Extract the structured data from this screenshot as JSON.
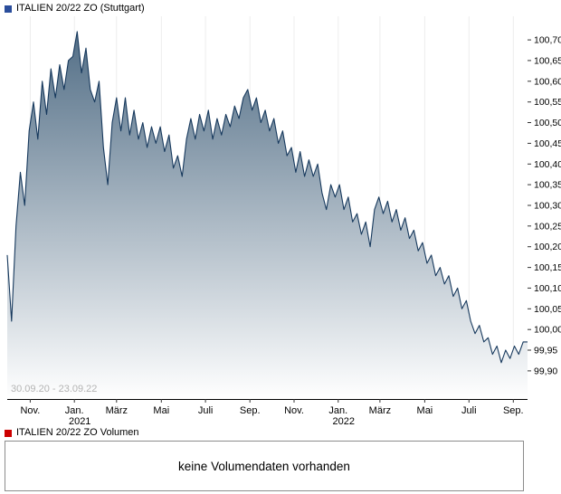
{
  "price_chart": {
    "legend_label": "ITALIEN 20/22 ZO (Stuttgart)",
    "legend_color": "#2a4d9b"
  },
  "volume_section": {
    "legend_label": "ITALIEN 20/22 ZO Volumen",
    "legend_color": "#cc0000",
    "empty_message": "keine Volumendaten vorhanden"
  },
  "chart_data": {
    "type": "area",
    "title": "ITALIEN 20/22 ZO (Stuttgart)",
    "date_range": "30.09.20 - 23.09.22",
    "xlabel": "",
    "ylabel": "",
    "grid": "faint-vertical",
    "legend_position": "top-left",
    "line_color": "#17395d",
    "fill_top_color": "#4b6881",
    "fill_bottom_color": "#ffffff",
    "axis_color": "#000000",
    "watermark_color": "#b4b4b4",
    "span_months": 23.8,
    "x_step_month": 0.2,
    "ylim": [
      99.832,
      100.757
    ],
    "y_ticks": [
      {
        "v": 100.7,
        "label": "100,70"
      },
      {
        "v": 100.65,
        "label": "100,65"
      },
      {
        "v": 100.6,
        "label": "100,60"
      },
      {
        "v": 100.55,
        "label": "100,55"
      },
      {
        "v": 100.5,
        "label": "100,50"
      },
      {
        "v": 100.45,
        "label": "100,45"
      },
      {
        "v": 100.4,
        "label": "100,40"
      },
      {
        "v": 100.35,
        "label": "100,35"
      },
      {
        "v": 100.3,
        "label": "100,30"
      },
      {
        "v": 100.25,
        "label": "100,25"
      },
      {
        "v": 100.2,
        "label": "100,20"
      },
      {
        "v": 100.15,
        "label": "100,15"
      },
      {
        "v": 100.1,
        "label": "100,10"
      },
      {
        "v": 100.05,
        "label": "100,05"
      },
      {
        "v": 100.0,
        "label": "100,00"
      },
      {
        "v": 99.95,
        "label": "99,95"
      },
      {
        "v": 99.9,
        "label": "99,90"
      }
    ],
    "x_ticks": [
      {
        "m": 1.05,
        "label": "Nov."
      },
      {
        "m": 3.07,
        "label": "Jan.",
        "sublabel": "2021"
      },
      {
        "m": 5.0,
        "label": "März"
      },
      {
        "m": 7.05,
        "label": "Mai"
      },
      {
        "m": 9.07,
        "label": "Juli"
      },
      {
        "m": 11.1,
        "label": "Sep."
      },
      {
        "m": 13.12,
        "label": "Nov."
      },
      {
        "m": 15.14,
        "label": "Jan.",
        "sublabel": "2022"
      },
      {
        "m": 17.05,
        "label": "März"
      },
      {
        "m": 19.1,
        "label": "Mai"
      },
      {
        "m": 21.12,
        "label": "Juli"
      },
      {
        "m": 23.15,
        "label": "Sep."
      }
    ],
    "series": [
      {
        "name": "ITALIEN 20/22 ZO",
        "values": [
          100.18,
          100.02,
          100.25,
          100.38,
          100.3,
          100.48,
          100.55,
          100.46,
          100.6,
          100.52,
          100.63,
          100.56,
          100.64,
          100.58,
          100.65,
          100.66,
          100.72,
          100.62,
          100.68,
          100.58,
          100.55,
          100.6,
          100.44,
          100.35,
          100.5,
          100.56,
          100.48,
          100.56,
          100.47,
          100.53,
          100.46,
          100.5,
          100.44,
          100.49,
          100.45,
          100.49,
          100.43,
          100.47,
          100.39,
          100.42,
          100.37,
          100.46,
          100.51,
          100.46,
          100.52,
          100.48,
          100.53,
          100.46,
          100.51,
          100.47,
          100.52,
          100.49,
          100.54,
          100.51,
          100.56,
          100.58,
          100.53,
          100.56,
          100.5,
          100.53,
          100.48,
          100.51,
          100.45,
          100.48,
          100.42,
          100.44,
          100.38,
          100.43,
          100.37,
          100.41,
          100.37,
          100.4,
          100.33,
          100.29,
          100.35,
          100.32,
          100.35,
          100.29,
          100.32,
          100.26,
          100.28,
          100.23,
          100.26,
          100.2,
          100.29,
          100.32,
          100.28,
          100.31,
          100.26,
          100.29,
          100.24,
          100.27,
          100.22,
          100.24,
          100.19,
          100.21,
          100.16,
          100.18,
          100.13,
          100.15,
          100.11,
          100.13,
          100.08,
          100.1,
          100.05,
          100.07,
          100.02,
          99.99,
          100.01,
          99.97,
          99.98,
          99.94,
          99.96,
          99.92,
          99.95,
          99.93,
          99.96,
          99.94,
          99.97,
          99.97
        ]
      }
    ]
  }
}
